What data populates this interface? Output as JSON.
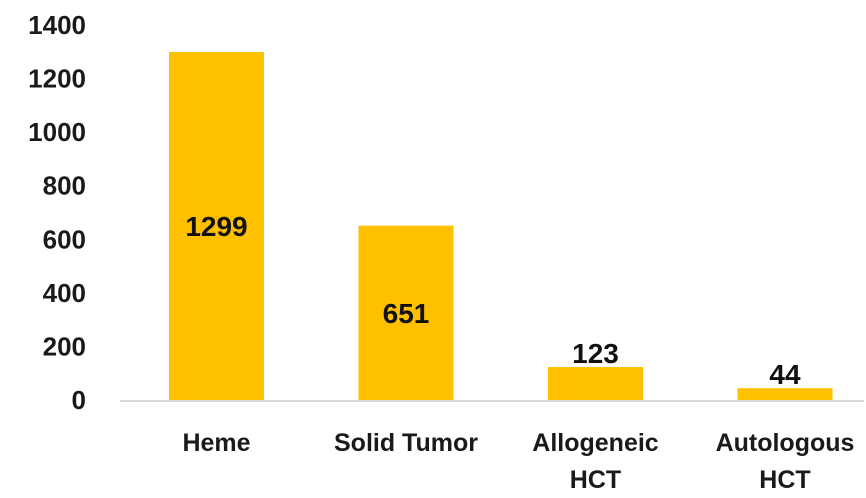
{
  "chart_data": {
    "type": "bar",
    "categories": [
      [
        "Heme"
      ],
      [
        "Solid Tumor"
      ],
      [
        "Allogeneic",
        "HCT"
      ],
      [
        "Autologous",
        "HCT"
      ]
    ],
    "values": [
      1299,
      651,
      123,
      44
    ],
    "data_labels": [
      "1299",
      "651",
      "123",
      "44"
    ],
    "ylim": [
      0,
      1400
    ],
    "yticks": [
      "0",
      "200",
      "400",
      "600",
      "800",
      "1000",
      "1200",
      "1400"
    ],
    "ytick_values": [
      0,
      200,
      400,
      600,
      800,
      1000,
      1200,
      1400
    ],
    "title": "",
    "xlabel": "",
    "ylabel": "",
    "grid": false,
    "bar_color": "#FFC000"
  }
}
